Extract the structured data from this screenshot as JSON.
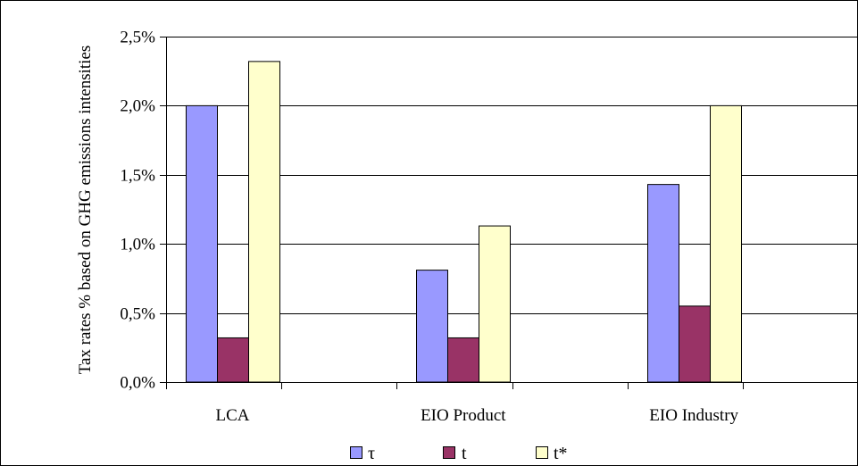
{
  "chart_data": {
    "type": "bar",
    "title": "",
    "xlabel": "",
    "ylabel": "Tax rates % based on GHG emissions intensities",
    "categories": [
      "LCA",
      "EIO Product",
      "EIO Industry"
    ],
    "ylim": [
      0,
      2.5
    ],
    "yticks": [
      0,
      0.5,
      1.0,
      1.5,
      2.0,
      2.5
    ],
    "ytick_labels": [
      "0,0%",
      "0,5%",
      "1,0%",
      "1,5%",
      "2,0%",
      "2,5%"
    ],
    "grid": true,
    "legend_position": "bottom",
    "series": [
      {
        "name": "τ",
        "color": "#9999ff",
        "values": [
          2.0,
          0.81,
          1.43
        ]
      },
      {
        "name": "t",
        "color": "#993366",
        "values": [
          0.32,
          0.32,
          0.55
        ]
      },
      {
        "name": "t*",
        "color": "#ffffcc",
        "values": [
          2.32,
          1.13,
          2.0
        ]
      }
    ]
  }
}
